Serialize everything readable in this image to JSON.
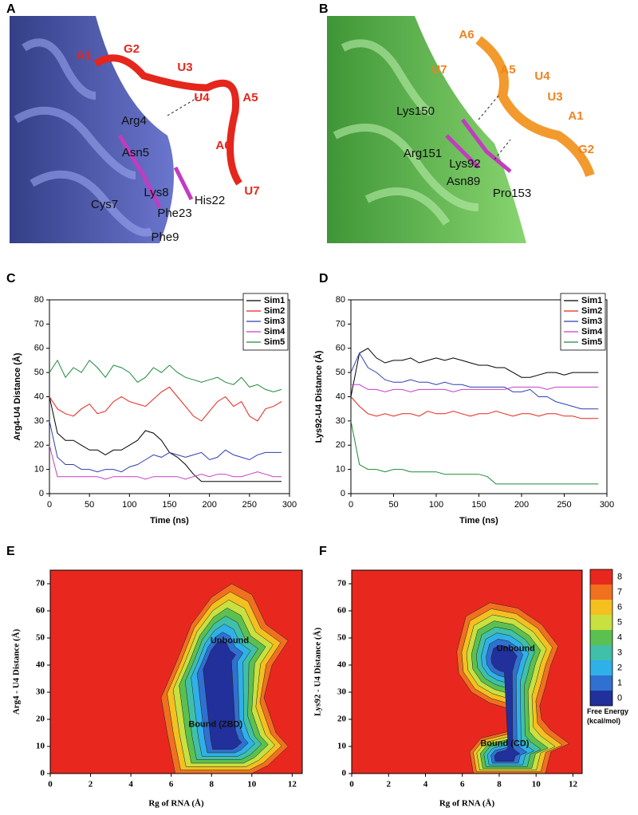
{
  "structures": [
    {
      "label": "A",
      "rna": [
        "A1",
        "G2",
        "U3",
        "U4",
        "A5",
        "A6",
        "U7"
      ],
      "rna_color": "#e5261c",
      "residues": [
        "Arg4",
        "Asn5",
        "Lys8",
        "Cys7",
        "Phe23",
        "His22",
        "Phe9"
      ]
    },
    {
      "label": "B",
      "rna": [
        "A6",
        "U7",
        "A5",
        "U4",
        "U3",
        "A1",
        "G2"
      ],
      "rna_color": "#f0821e",
      "residues": [
        "Lys150",
        "Arg151",
        "Lys92",
        "Asn89",
        "Pro153"
      ]
    }
  ],
  "chart_data": [
    {
      "label": "C",
      "type": "line",
      "xlabel": "Time (ns)",
      "ylabel": "Arg4-U4 Distance (Å)",
      "x": [
        0,
        10,
        20,
        30,
        40,
        50,
        60,
        70,
        80,
        90,
        100,
        110,
        120,
        130,
        140,
        150,
        160,
        170,
        180,
        190,
        200,
        210,
        220,
        230,
        240,
        250,
        260,
        270,
        280,
        290
      ],
      "series": [
        {
          "name": "Sim1",
          "color": "#000000",
          "values": [
            40,
            25,
            22,
            22,
            20,
            18,
            18,
            16,
            18,
            18,
            20,
            22,
            26,
            25,
            22,
            17,
            15,
            12,
            8,
            5,
            5,
            5,
            5,
            5,
            5,
            5,
            5,
            5,
            5,
            5
          ]
        },
        {
          "name": "Sim2",
          "color": "#e8231b",
          "values": [
            40,
            35,
            33,
            32,
            35,
            37,
            33,
            34,
            38,
            40,
            38,
            37,
            36,
            39,
            42,
            44,
            40,
            36,
            32,
            30,
            34,
            38,
            40,
            36,
            38,
            32,
            30,
            35,
            36,
            38
          ]
        },
        {
          "name": "Sim3",
          "color": "#2d3fb0",
          "values": [
            30,
            15,
            12,
            12,
            10,
            10,
            9,
            10,
            10,
            9,
            11,
            12,
            14,
            16,
            15,
            17,
            16,
            15,
            16,
            17,
            14,
            15,
            18,
            16,
            15,
            14,
            16,
            17,
            17,
            17
          ]
        },
        {
          "name": "Sim4",
          "color": "#c83cc8",
          "values": [
            20,
            7,
            7,
            7,
            7,
            7,
            7,
            6,
            7,
            7,
            7,
            7,
            6,
            7,
            7,
            7,
            7,
            6,
            7,
            8,
            7,
            8,
            8,
            7,
            7,
            8,
            9,
            8,
            7,
            7
          ]
        },
        {
          "name": "Sim5",
          "color": "#1d8a3a",
          "values": [
            50,
            55,
            48,
            52,
            50,
            55,
            52,
            48,
            53,
            52,
            50,
            46,
            48,
            52,
            50,
            53,
            50,
            48,
            47,
            46,
            47,
            48,
            46,
            45,
            48,
            44,
            45,
            43,
            42,
            43
          ]
        }
      ],
      "xlim": [
        0,
        300
      ],
      "ylim": [
        0,
        80
      ],
      "xticks": [
        0,
        50,
        100,
        150,
        200,
        250,
        300
      ],
      "yticks": [
        0,
        10,
        20,
        30,
        40,
        50,
        60,
        70,
        80
      ],
      "legend": "upper right"
    },
    {
      "label": "D",
      "type": "line",
      "xlabel": "Time (ns)",
      "ylabel": "Lys92-U4 Distance (Å)",
      "x": [
        0,
        10,
        20,
        30,
        40,
        50,
        60,
        70,
        80,
        90,
        100,
        110,
        120,
        130,
        140,
        150,
        160,
        170,
        180,
        190,
        200,
        210,
        220,
        230,
        240,
        250,
        260,
        270,
        280,
        290
      ],
      "series": [
        {
          "name": "Sim1",
          "color": "#000000",
          "values": [
            40,
            58,
            60,
            56,
            54,
            55,
            55,
            56,
            54,
            55,
            56,
            55,
            56,
            55,
            54,
            53,
            53,
            52,
            52,
            50,
            48,
            48,
            49,
            50,
            50,
            49,
            50,
            50,
            50,
            50
          ]
        },
        {
          "name": "Sim2",
          "color": "#e8231b",
          "values": [
            40,
            36,
            33,
            32,
            33,
            32,
            33,
            33,
            32,
            34,
            33,
            33,
            34,
            33,
            32,
            33,
            33,
            34,
            33,
            32,
            33,
            33,
            32,
            33,
            33,
            32,
            32,
            31,
            31,
            31
          ]
        },
        {
          "name": "Sim3",
          "color": "#2d3fb0",
          "values": [
            50,
            58,
            52,
            50,
            47,
            46,
            46,
            47,
            46,
            46,
            45,
            46,
            45,
            45,
            44,
            44,
            44,
            44,
            44,
            42,
            42,
            43,
            40,
            40,
            38,
            37,
            36,
            35,
            35,
            35
          ]
        },
        {
          "name": "Sim4",
          "color": "#c83cc8",
          "values": [
            45,
            45,
            43,
            43,
            42,
            43,
            43,
            42,
            43,
            43,
            43,
            43,
            42,
            43,
            43,
            43,
            43,
            43,
            43,
            44,
            44,
            44,
            44,
            43,
            44,
            44,
            44,
            44,
            44,
            44
          ]
        },
        {
          "name": "Sim5",
          "color": "#1d8a3a",
          "values": [
            30,
            12,
            10,
            10,
            9,
            10,
            10,
            9,
            9,
            9,
            9,
            8,
            8,
            8,
            8,
            8,
            7,
            4,
            4,
            4,
            4,
            4,
            4,
            4,
            4,
            4,
            4,
            4,
            4,
            4
          ]
        }
      ],
      "xlim": [
        0,
        300
      ],
      "ylim": [
        0,
        80
      ],
      "xticks": [
        0,
        50,
        100,
        150,
        200,
        250,
        300
      ],
      "yticks": [
        0,
        10,
        20,
        30,
        40,
        50,
        60,
        70,
        80
      ],
      "legend": "upper right"
    },
    {
      "label": "E",
      "type": "contour",
      "xlabel": "Rg of RNA (Å)",
      "ylabel": "Arg4 - U4 Distance (Å)",
      "annotations": [
        "Unbound",
        "Bound (ZBD)"
      ],
      "background": "#e8281e",
      "xlim": [
        0,
        12.5
      ],
      "ylim": [
        0,
        75
      ],
      "xticks": [
        0,
        2,
        4,
        6,
        8,
        10,
        12
      ],
      "yticks": [
        0,
        10,
        20,
        30,
        40,
        50,
        60,
        70
      ]
    },
    {
      "label": "F",
      "type": "contour",
      "xlabel": "Rg of RNA (Å)",
      "ylabel": "Lys92 - U4 Distance (Å)",
      "annotations": [
        "Unbound",
        "Bound (CD)"
      ],
      "background": "#e8281e",
      "xlim": [
        0,
        12.5
      ],
      "ylim": [
        0,
        75
      ],
      "xticks": [
        0,
        2,
        4,
        6,
        8,
        10,
        12
      ],
      "yticks": [
        0,
        10,
        20,
        30,
        40,
        50,
        60,
        70
      ],
      "colorbar": {
        "title": "Free Energy (kcal/mol)",
        "ticks": [
          0,
          1,
          2,
          3,
          4,
          5,
          6,
          7,
          8
        ],
        "colors": [
          "#21309a",
          "#3070d0",
          "#30b0e8",
          "#40c0a8",
          "#5cc050",
          "#c8e040",
          "#f4c020",
          "#f07020",
          "#e8281e"
        ]
      }
    }
  ]
}
